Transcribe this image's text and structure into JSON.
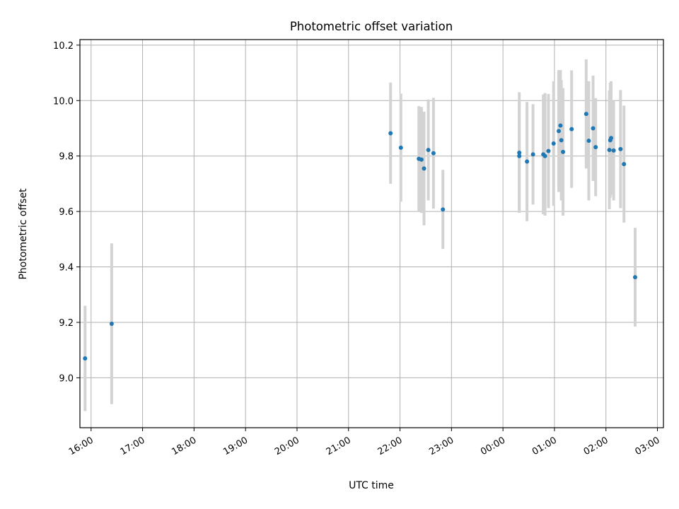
{
  "chart_data": {
    "type": "scatter",
    "title": "Photometric offset variation",
    "xlabel": "UTC time",
    "ylabel": "Photometric offset",
    "x_tick_labels": [
      "16:00",
      "17:00",
      "18:00",
      "19:00",
      "20:00",
      "21:00",
      "22:00",
      "23:00",
      "00:00",
      "01:00",
      "02:00",
      "03:00"
    ],
    "y_tick_labels": [
      "9.0",
      "9.2",
      "9.4",
      "9.6",
      "9.8",
      "10.0",
      "10.2"
    ],
    "x_ticks": [
      "16:00",
      "17:00",
      "18:00",
      "19:00",
      "20:00",
      "21:00",
      "22:00",
      "23:00",
      "24:00",
      "25:00",
      "26:00",
      "27:00"
    ],
    "y_ticks": [
      9.0,
      9.2,
      9.4,
      9.6,
      9.8,
      10.0,
      10.2
    ],
    "xlim": [
      "15:47",
      "27:07"
    ],
    "ylim": [
      8.82,
      10.22
    ],
    "grid": true,
    "point_color": "#1f77b4",
    "errorbar_color": "#d3d3d3",
    "points": [
      {
        "t": "15:53",
        "y": 9.07,
        "lo": 8.88,
        "hi": 9.26
      },
      {
        "t": "16:24",
        "y": 9.195,
        "lo": 8.905,
        "hi": 9.485
      },
      {
        "t": "21:49",
        "y": 9.882,
        "lo": 9.7,
        "hi": 10.065
      },
      {
        "t": "22:01",
        "y": 9.83,
        "lo": 9.635,
        "hi": 10.025
      },
      {
        "t": "22:22",
        "y": 9.79,
        "lo": 9.6,
        "hi": 9.98
      },
      {
        "t": "22:25",
        "y": 9.787,
        "lo": 9.595,
        "hi": 9.977
      },
      {
        "t": "22:28",
        "y": 9.755,
        "lo": 9.55,
        "hi": 9.96
      },
      {
        "t": "22:33",
        "y": 9.822,
        "lo": 9.64,
        "hi": 10.004
      },
      {
        "t": "22:39",
        "y": 9.81,
        "lo": 9.61,
        "hi": 10.01
      },
      {
        "t": "22:50",
        "y": 9.607,
        "lo": 9.465,
        "hi": 9.75
      },
      {
        "t": "24:19",
        "y": 9.812,
        "lo": 9.595,
        "hi": 10.03
      },
      {
        "t": "24:19",
        "y": 9.8,
        "lo": 9.6,
        "hi": 10.0
      },
      {
        "t": "24:28",
        "y": 9.78,
        "lo": 9.565,
        "hi": 9.995
      },
      {
        "t": "24:35",
        "y": 9.806,
        "lo": 9.625,
        "hi": 9.987
      },
      {
        "t": "24:47",
        "y": 9.806,
        "lo": 9.59,
        "hi": 10.022
      },
      {
        "t": "24:49",
        "y": 9.8,
        "lo": 9.585,
        "hi": 10.027
      },
      {
        "t": "24:53",
        "y": 9.818,
        "lo": 9.612,
        "hi": 10.024
      },
      {
        "t": "24:59",
        "y": 9.845,
        "lo": 9.62,
        "hi": 10.07
      },
      {
        "t": "25:05",
        "y": 9.89,
        "lo": 9.67,
        "hi": 10.11
      },
      {
        "t": "25:07",
        "y": 9.91,
        "lo": 9.71,
        "hi": 10.11
      },
      {
        "t": "25:08",
        "y": 9.857,
        "lo": 9.64,
        "hi": 10.074
      },
      {
        "t": "25:10",
        "y": 9.815,
        "lo": 9.585,
        "hi": 10.045
      },
      {
        "t": "25:20",
        "y": 9.897,
        "lo": 9.685,
        "hi": 10.109
      },
      {
        "t": "25:37",
        "y": 9.952,
        "lo": 9.755,
        "hi": 10.149
      },
      {
        "t": "25:40",
        "y": 9.855,
        "lo": 9.64,
        "hi": 10.07
      },
      {
        "t": "25:45",
        "y": 9.9,
        "lo": 9.71,
        "hi": 10.09
      },
      {
        "t": "25:48",
        "y": 9.832,
        "lo": 9.655,
        "hi": 10.009
      },
      {
        "t": "26:04",
        "y": 9.822,
        "lo": 9.608,
        "hi": 10.036
      },
      {
        "t": "26:05",
        "y": 9.857,
        "lo": 9.65,
        "hi": 10.064
      },
      {
        "t": "26:06",
        "y": 9.865,
        "lo": 9.66,
        "hi": 10.07
      },
      {
        "t": "26:09",
        "y": 9.82,
        "lo": 9.64,
        "hi": 10.0
      },
      {
        "t": "26:17",
        "y": 9.825,
        "lo": 9.612,
        "hi": 10.038
      },
      {
        "t": "26:21",
        "y": 9.771,
        "lo": 9.56,
        "hi": 9.982
      },
      {
        "t": "26:34",
        "y": 9.363,
        "lo": 9.185,
        "hi": 9.541
      }
    ]
  }
}
